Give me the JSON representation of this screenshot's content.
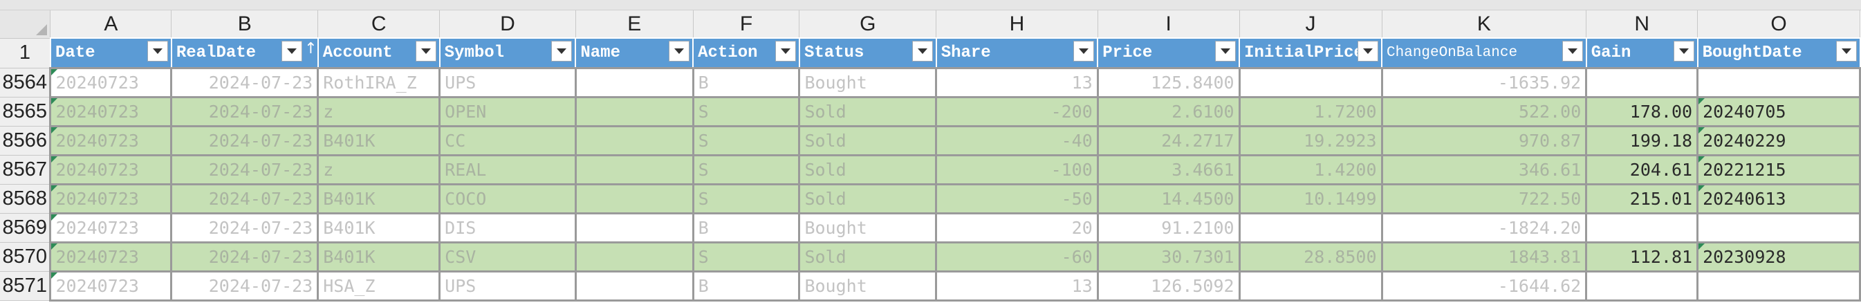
{
  "columns": [
    "A",
    "B",
    "C",
    "D",
    "E",
    "F",
    "G",
    "H",
    "I",
    "J",
    "K",
    "N",
    "O"
  ],
  "header_row_number": "1",
  "headers": {
    "date": "Date",
    "realdate": "RealDate",
    "account": "Account",
    "symbol": "Symbol",
    "name": "Name",
    "action": "Action",
    "status": "Status",
    "share": "Share",
    "price": "Price",
    "initialprice": "InitialPrice",
    "changeonbalance": "ChangeOnBalance",
    "gain": "Gain",
    "boughtdate": "BoughtDate"
  },
  "sort_indicator": "↑",
  "colors": {
    "header_blue": "#5b9bd5",
    "row_highlight": "#c6e0b4",
    "flag_green": "#2e8b57"
  },
  "rows": [
    {
      "num": "8564",
      "date": "20240723",
      "realdate": "2024-07-23",
      "account": "RothIRA_Z",
      "symbol": "UPS",
      "name": "",
      "action": "B",
      "status": "Bought",
      "share": "13",
      "price": "125.8400",
      "initialprice": "",
      "changeonbalance": "-1635.92",
      "gain": "",
      "boughtdate": "",
      "highlight": false
    },
    {
      "num": "8565",
      "date": "20240723",
      "realdate": "2024-07-23",
      "account": "z",
      "symbol": "OPEN",
      "name": "",
      "action": "S",
      "status": "Sold",
      "share": "-200",
      "price": "2.6100",
      "initialprice": "1.7200",
      "changeonbalance": "522.00",
      "gain": "178.00",
      "boughtdate": "20240705",
      "highlight": true
    },
    {
      "num": "8566",
      "date": "20240723",
      "realdate": "2024-07-23",
      "account": "B401K",
      "symbol": "CC",
      "name": "",
      "action": "S",
      "status": "Sold",
      "share": "-40",
      "price": "24.2717",
      "initialprice": "19.2923",
      "changeonbalance": "970.87",
      "gain": "199.18",
      "boughtdate": "20240229",
      "highlight": true
    },
    {
      "num": "8567",
      "date": "20240723",
      "realdate": "2024-07-23",
      "account": "z",
      "symbol": "REAL",
      "name": "",
      "action": "S",
      "status": "Sold",
      "share": "-100",
      "price": "3.4661",
      "initialprice": "1.4200",
      "changeonbalance": "346.61",
      "gain": "204.61",
      "boughtdate": "20221215",
      "highlight": true
    },
    {
      "num": "8568",
      "date": "20240723",
      "realdate": "2024-07-23",
      "account": "B401K",
      "symbol": "COCO",
      "name": "",
      "action": "S",
      "status": "Sold",
      "share": "-50",
      "price": "14.4500",
      "initialprice": "10.1499",
      "changeonbalance": "722.50",
      "gain": "215.01",
      "boughtdate": "20240613",
      "highlight": true
    },
    {
      "num": "8569",
      "date": "20240723",
      "realdate": "2024-07-23",
      "account": "B401K",
      "symbol": "DIS",
      "name": "",
      "action": "B",
      "status": "Bought",
      "share": "20",
      "price": "91.2100",
      "initialprice": "",
      "changeonbalance": "-1824.20",
      "gain": "",
      "boughtdate": "",
      "highlight": false
    },
    {
      "num": "8570",
      "date": "20240723",
      "realdate": "2024-07-23",
      "account": "B401K",
      "symbol": "CSV",
      "name": "",
      "action": "S",
      "status": "Sold",
      "share": "-60",
      "price": "30.7301",
      "initialprice": "28.8500",
      "changeonbalance": "1843.81",
      "gain": "112.81",
      "boughtdate": "20230928",
      "highlight": true
    },
    {
      "num": "8571",
      "date": "20240723",
      "realdate": "2024-07-23",
      "account": "HSA_Z",
      "symbol": "UPS",
      "name": "",
      "action": "B",
      "status": "Bought",
      "share": "13",
      "price": "126.5092",
      "initialprice": "",
      "changeonbalance": "-1644.62",
      "gain": "",
      "boughtdate": "",
      "highlight": false
    }
  ]
}
